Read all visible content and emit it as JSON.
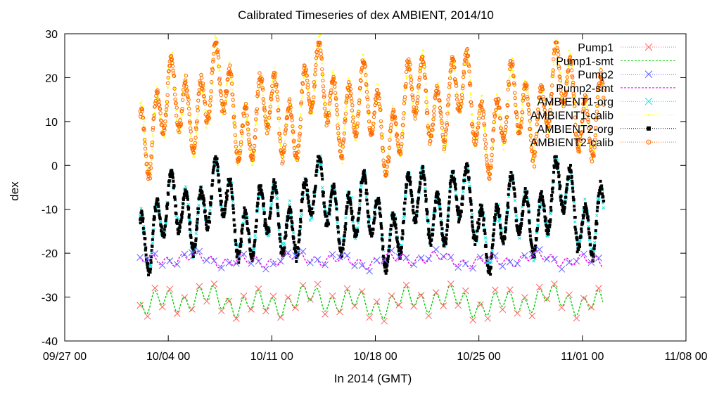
{
  "chart_data": {
    "type": "scatter",
    "title": "Calibrated Timeseries of dex AMBIENT, 2014/10",
    "xlabel": "In 2014 (GMT)",
    "ylabel": "dex",
    "ylim": [
      -40,
      30
    ],
    "yticks": [
      -40,
      -30,
      -20,
      -10,
      0,
      10,
      20,
      30
    ],
    "xlim": [
      "2014-09-27",
      "2014-11-08"
    ],
    "xticks": [
      "09/27 00",
      "10/04 00",
      "10/11 00",
      "10/18 00",
      "10/25 00",
      "11/01 00",
      "11/08 00"
    ],
    "grid": false,
    "legend_position": "top-right",
    "series": [
      {
        "name": "Pump1",
        "color": "#ff6060",
        "marker": "x",
        "data_range": [
          "2014-10-02",
          "2014-11-02"
        ],
        "mean": -31,
        "min": -37,
        "max": -27
      },
      {
        "name": "Pump1-smt",
        "color": "#00cc00",
        "marker": "line",
        "data_range": [
          "2014-10-02",
          "2014-11-02"
        ],
        "mean": -31,
        "min": -36,
        "max": -27.5
      },
      {
        "name": "Pump2",
        "color": "#6060ff",
        "marker": "x",
        "data_range": [
          "2014-10-02",
          "2014-11-02"
        ],
        "mean": -21.5,
        "min": -26,
        "max": -19
      },
      {
        "name": "Pump2-smt",
        "color": "#ee00ee",
        "marker": "line",
        "data_range": [
          "2014-10-02",
          "2014-11-02"
        ],
        "mean": -21.5,
        "min": -24,
        "max": -19.5
      },
      {
        "name": "AMBIENT1-org",
        "color": "#00e5e5",
        "marker": "x",
        "data_range": [
          "2014-10-02",
          "2014-11-02"
        ],
        "mean": -11,
        "min": -23,
        "max": 3
      },
      {
        "name": "AMBIENT1-calib",
        "color": "#ffff00",
        "marker": "dot",
        "data_range": [
          "2014-10-02",
          "2014-11-02"
        ],
        "mean": 13,
        "min": -2,
        "max": 30
      },
      {
        "name": "AMBIENT2-org",
        "color": "#000000",
        "marker": "square",
        "data_range": [
          "2014-10-02",
          "2014-11-02"
        ],
        "mean": -11,
        "min": -25,
        "max": 2
      },
      {
        "name": "AMBIENT2-calib",
        "color": "#ff6600",
        "marker": "circle",
        "data_range": [
          "2014-10-02",
          "2014-11-02"
        ],
        "mean": 13,
        "min": -4,
        "max": 28
      }
    ]
  }
}
